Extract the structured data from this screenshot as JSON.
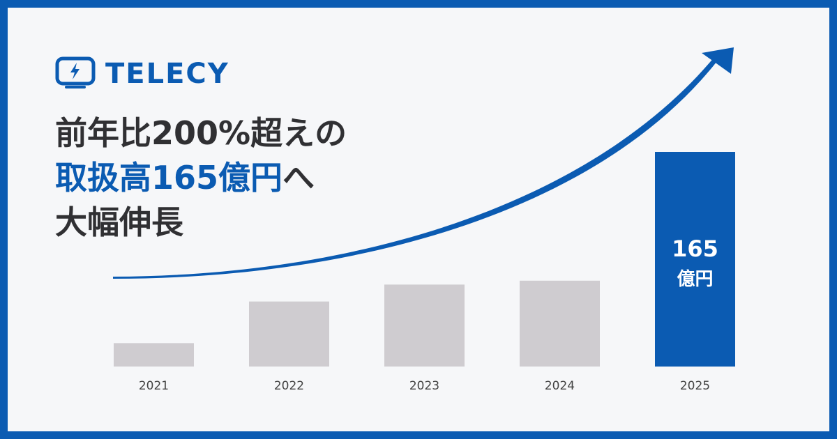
{
  "brand": {
    "name": "TELECY",
    "logo_icon": "monitor-lightning-icon",
    "color": "#0b5bb2"
  },
  "headline": {
    "line1": "前年比200%超えの",
    "line2_highlight": "取扱高165億円",
    "line2_rest": "へ",
    "line3": "大幅伸長"
  },
  "chart_data": {
    "type": "bar",
    "categories": [
      "2021",
      "2022",
      "2023",
      "2024",
      "2025"
    ],
    "values": [
      18,
      50,
      63,
      66,
      165
    ],
    "highlight_index": 4,
    "highlight_label_value": "165",
    "highlight_label_unit": "億円",
    "bar_color": "#cfccd0",
    "highlight_color": "#0b5bb2",
    "trend_arrow": true,
    "title": "",
    "xlabel": "",
    "ylabel": "",
    "grid": false
  }
}
